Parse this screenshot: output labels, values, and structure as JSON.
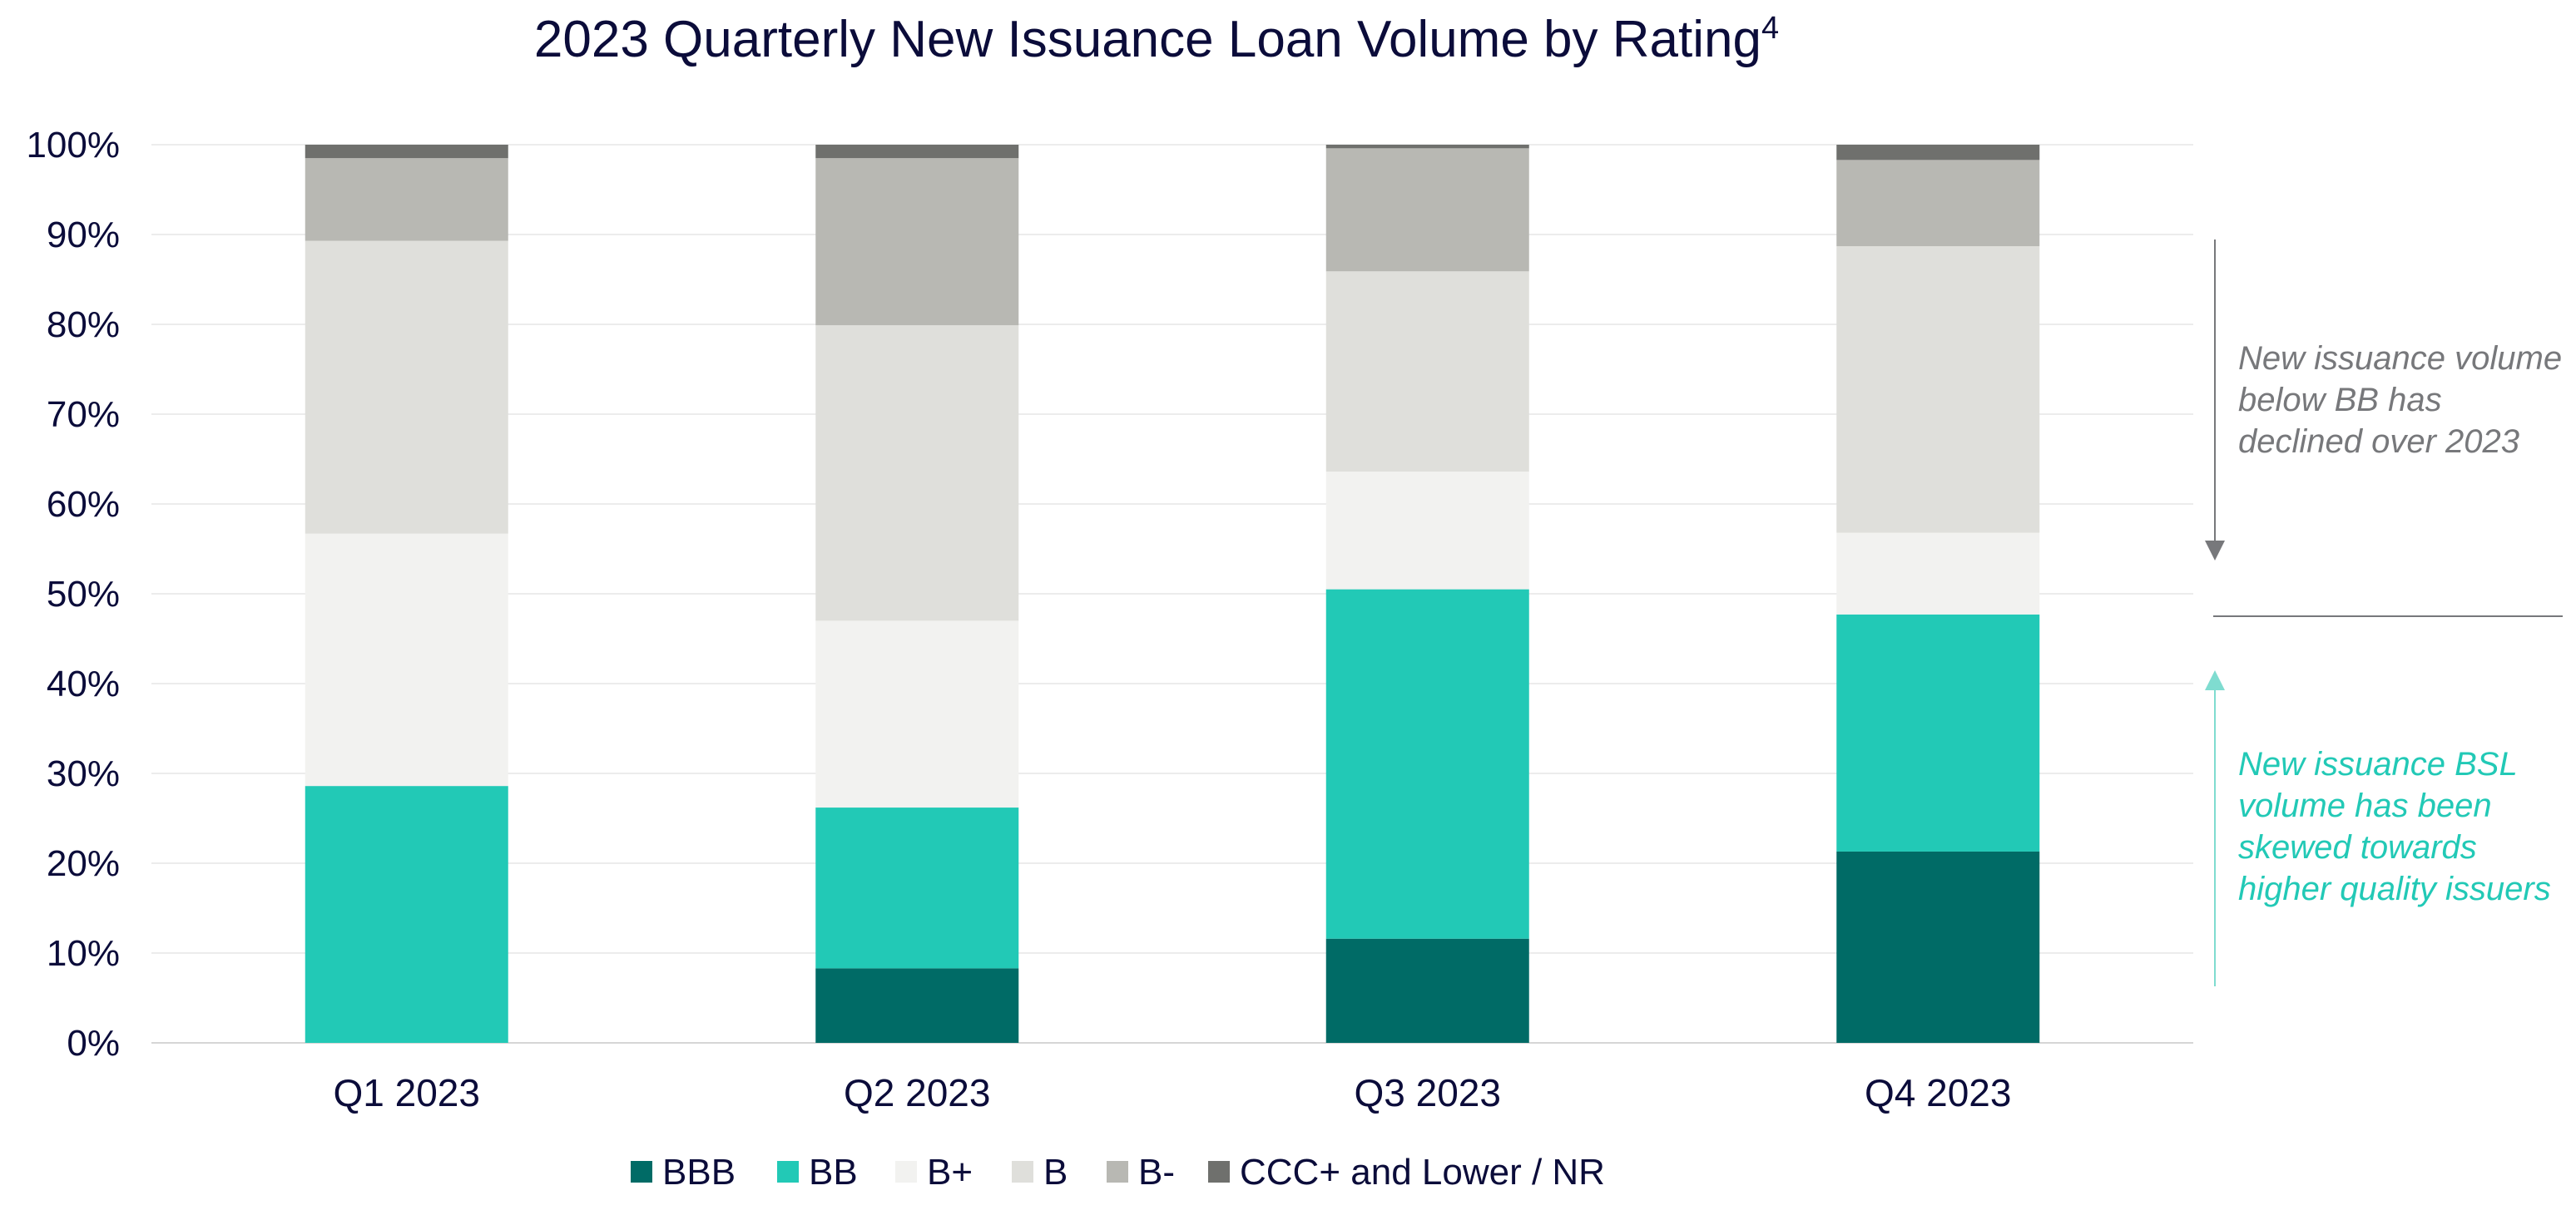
{
  "chart_data": {
    "type": "bar",
    "stacked": true,
    "title": "2023 Quarterly New Issuance Loan Volume by Rating",
    "title_superscript": "4",
    "categories": [
      "Q1 2023",
      "Q2 2023",
      "Q3 2023",
      "Q4 2023"
    ],
    "ylim": [
      0,
      100
    ],
    "y_ticks": [
      "0%",
      "10%",
      "20%",
      "30%",
      "40%",
      "50%",
      "60%",
      "70%",
      "80%",
      "90%",
      "100%"
    ],
    "grid": true,
    "legend_position": "bottom",
    "series": [
      {
        "name": "BBB",
        "color": "#006b66",
        "values": [
          0,
          8.3,
          11.6,
          21.3
        ]
      },
      {
        "name": "BB",
        "color": "#22c9b6",
        "values": [
          28.6,
          17.9,
          38.9,
          26.4
        ]
      },
      {
        "name": "B+",
        "color": "#f2f2f0",
        "values": [
          28.1,
          20.8,
          13.1,
          9.1
        ]
      },
      {
        "name": "B",
        "color": "#dfdfdb",
        "values": [
          32.6,
          32.9,
          22.3,
          31.9
        ]
      },
      {
        "name": "B-",
        "color": "#b8b8b3",
        "values": [
          9.2,
          18.6,
          13.7,
          9.6
        ]
      },
      {
        "name": "CCC+ and Lower / NR",
        "color": "#6f706d",
        "values": [
          1.5,
          1.5,
          0.4,
          1.7
        ]
      }
    ],
    "annotations": [
      {
        "text": [
          "New issuance volume",
          "below BB has",
          "declined over 2023"
        ],
        "color": "#77787b",
        "arrow": "down"
      },
      {
        "text": [
          "New issuance BSL",
          "volume has been",
          "skewed towards",
          "higher quality issuers"
        ],
        "color": "#22c9b6",
        "arrow": "up"
      }
    ]
  }
}
